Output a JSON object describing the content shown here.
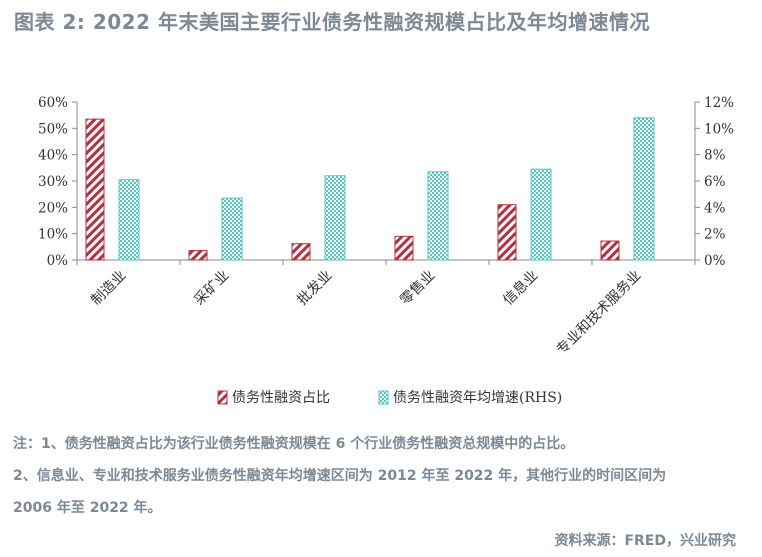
{
  "title": "图表 2:  2022 年末美国主要行业债务性融资规模占比及年均增速情况",
  "chart_data": {
    "type": "bar",
    "categories": [
      "制造业",
      "采矿业",
      "批发业",
      "零售业",
      "信息业",
      "专业和技术服务业"
    ],
    "series": [
      {
        "name": "债务性融资占比",
        "axis": "left",
        "values": [
          53.5,
          3.6,
          6.2,
          9.0,
          21.0,
          7.2
        ],
        "unit": "%"
      },
      {
        "name": "债务性融资年均增速(RHS)",
        "axis": "right",
        "values": [
          6.1,
          4.7,
          6.4,
          6.7,
          6.9,
          10.8
        ],
        "unit": "%"
      }
    ],
    "left_axis": {
      "ticks": [
        "0%",
        "10%",
        "20%",
        "30%",
        "40%",
        "50%",
        "60%"
      ],
      "ylim": [
        0,
        60
      ]
    },
    "right_axis": {
      "ticks": [
        "0%",
        "2%",
        "4%",
        "6%",
        "8%",
        "10%",
        "12%"
      ],
      "ylim": [
        0,
        12
      ]
    },
    "grid": false,
    "legend_position": "bottom"
  },
  "colors": {
    "series1": "#b5303f",
    "series2": "#4fc9c3",
    "axis": "#8a8a8a",
    "text": "#7d8897"
  },
  "notes": [
    "注：1、债务性融资占比为该行业债务性融资规模在 6 个行业债务性融资总规模中的占比。",
    "2、信息业、专业和技术服务业债务性融资年均增速区间为 2012 年至 2022 年，其他行业的时间区间为",
    "2006 年至 2022 年。"
  ],
  "source": "资料来源：FRED，兴业研究"
}
